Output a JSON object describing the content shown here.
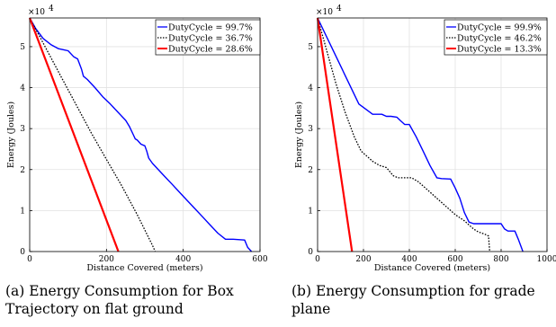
{
  "chart_data": [
    {
      "type": "line",
      "caption": "(a) Energy Consumption for Box Trajectory on flat ground",
      "caption_lines": [
        "(a) Energy Consumption for Box",
        "Trajectory on flat ground"
      ],
      "xlabel": "Distance Covered (meters)",
      "ylabel": "Energy (Joules)",
      "y_multiplier_label": "×10",
      "y_multiplier_exp": "4",
      "xlim": [
        0,
        600
      ],
      "ylim": [
        0,
        5.7
      ],
      "xticks": [
        0,
        200,
        400,
        600
      ],
      "yticks": [
        0,
        1,
        2,
        3,
        4,
        5
      ],
      "grid": true,
      "legend_position": "top-right",
      "series": [
        {
          "name": "DutyCycle = 99.7%",
          "color": "#0000ff",
          "style": "solid",
          "x": [
            0,
            15,
            35,
            55,
            75,
            90,
            100,
            115,
            125,
            135,
            140,
            150,
            170,
            190,
            210,
            230,
            250,
            260,
            270,
            275,
            280,
            290,
            300,
            305,
            310,
            320,
            330,
            350,
            370,
            390,
            410,
            430,
            450,
            470,
            490,
            510,
            530,
            560,
            568,
            578
          ],
          "y": [
            5.7,
            5.45,
            5.2,
            5.05,
            4.95,
            4.92,
            4.9,
            4.75,
            4.7,
            4.45,
            4.28,
            4.2,
            4.0,
            3.78,
            3.6,
            3.4,
            3.2,
            3.05,
            2.85,
            2.75,
            2.72,
            2.62,
            2.58,
            2.45,
            2.28,
            2.15,
            2.05,
            1.85,
            1.65,
            1.45,
            1.25,
            1.05,
            0.85,
            0.65,
            0.45,
            0.3,
            0.3,
            0.28,
            0.1,
            0.0
          ]
        },
        {
          "name": "DutyCycle = 36.7%",
          "color": "#000000",
          "style": "dotted",
          "x": [
            0,
            40,
            80,
            120,
            160,
            200,
            240,
            280,
            320,
            327
          ],
          "y": [
            5.7,
            5.0,
            4.3,
            3.6,
            2.9,
            2.25,
            1.6,
            0.9,
            0.15,
            0.0
          ]
        },
        {
          "name": "DutyCycle = 28.6%",
          "color": "#ff0000",
          "style": "solid",
          "x": [
            0,
            231
          ],
          "y": [
            5.7,
            0.0
          ]
        }
      ]
    },
    {
      "type": "line",
      "caption": "(b) Energy Consumption for grade plane",
      "caption_lines": [
        "(b) Energy Consumption for grade",
        "plane"
      ],
      "xlabel": "Distance Covered (meters)",
      "ylabel": "Energy (Joules)",
      "y_multiplier_label": "×10",
      "y_multiplier_exp": "4",
      "xlim": [
        0,
        1000
      ],
      "ylim": [
        0,
        5.7
      ],
      "xticks": [
        0,
        200,
        400,
        600,
        800,
        1000
      ],
      "yticks": [
        0,
        1,
        2,
        3,
        4,
        5
      ],
      "grid": true,
      "legend_position": "top-right",
      "series": [
        {
          "name": "DutyCycle = 99.9%",
          "color": "#0000ff",
          "style": "solid",
          "x": [
            0,
            60,
            120,
            180,
            240,
            280,
            300,
            320,
            345,
            360,
            380,
            400,
            430,
            460,
            490,
            520,
            540,
            580,
            600,
            620,
            640,
            660,
            680,
            700,
            730,
            760,
            800,
            815,
            830,
            860,
            875,
            895
          ],
          "y": [
            5.7,
            5.0,
            4.3,
            3.6,
            3.35,
            3.35,
            3.3,
            3.3,
            3.28,
            3.2,
            3.1,
            3.1,
            2.8,
            2.45,
            2.1,
            1.8,
            1.78,
            1.77,
            1.55,
            1.3,
            0.95,
            0.72,
            0.68,
            0.68,
            0.68,
            0.68,
            0.68,
            0.55,
            0.5,
            0.5,
            0.3,
            0.0
          ]
        },
        {
          "name": "DutyCycle = 46.2%",
          "color": "#000000",
          "style": "dotted",
          "x": [
            0,
            40,
            80,
            120,
            160,
            190,
            210,
            240,
            270,
            300,
            330,
            350,
            380,
            410,
            440,
            480,
            520,
            560,
            600,
            640,
            660,
            680,
            700,
            730,
            745,
            750
          ],
          "y": [
            5.7,
            4.9,
            4.1,
            3.4,
            2.8,
            2.45,
            2.35,
            2.2,
            2.1,
            2.05,
            1.85,
            1.8,
            1.8,
            1.8,
            1.7,
            1.5,
            1.3,
            1.1,
            0.9,
            0.75,
            0.65,
            0.55,
            0.48,
            0.42,
            0.38,
            0.0
          ]
        },
        {
          "name": "DutyCycle = 13.3%",
          "color": "#ff0000",
          "style": "solid",
          "x": [
            0,
            150
          ],
          "y": [
            5.7,
            0.0
          ]
        }
      ]
    }
  ]
}
